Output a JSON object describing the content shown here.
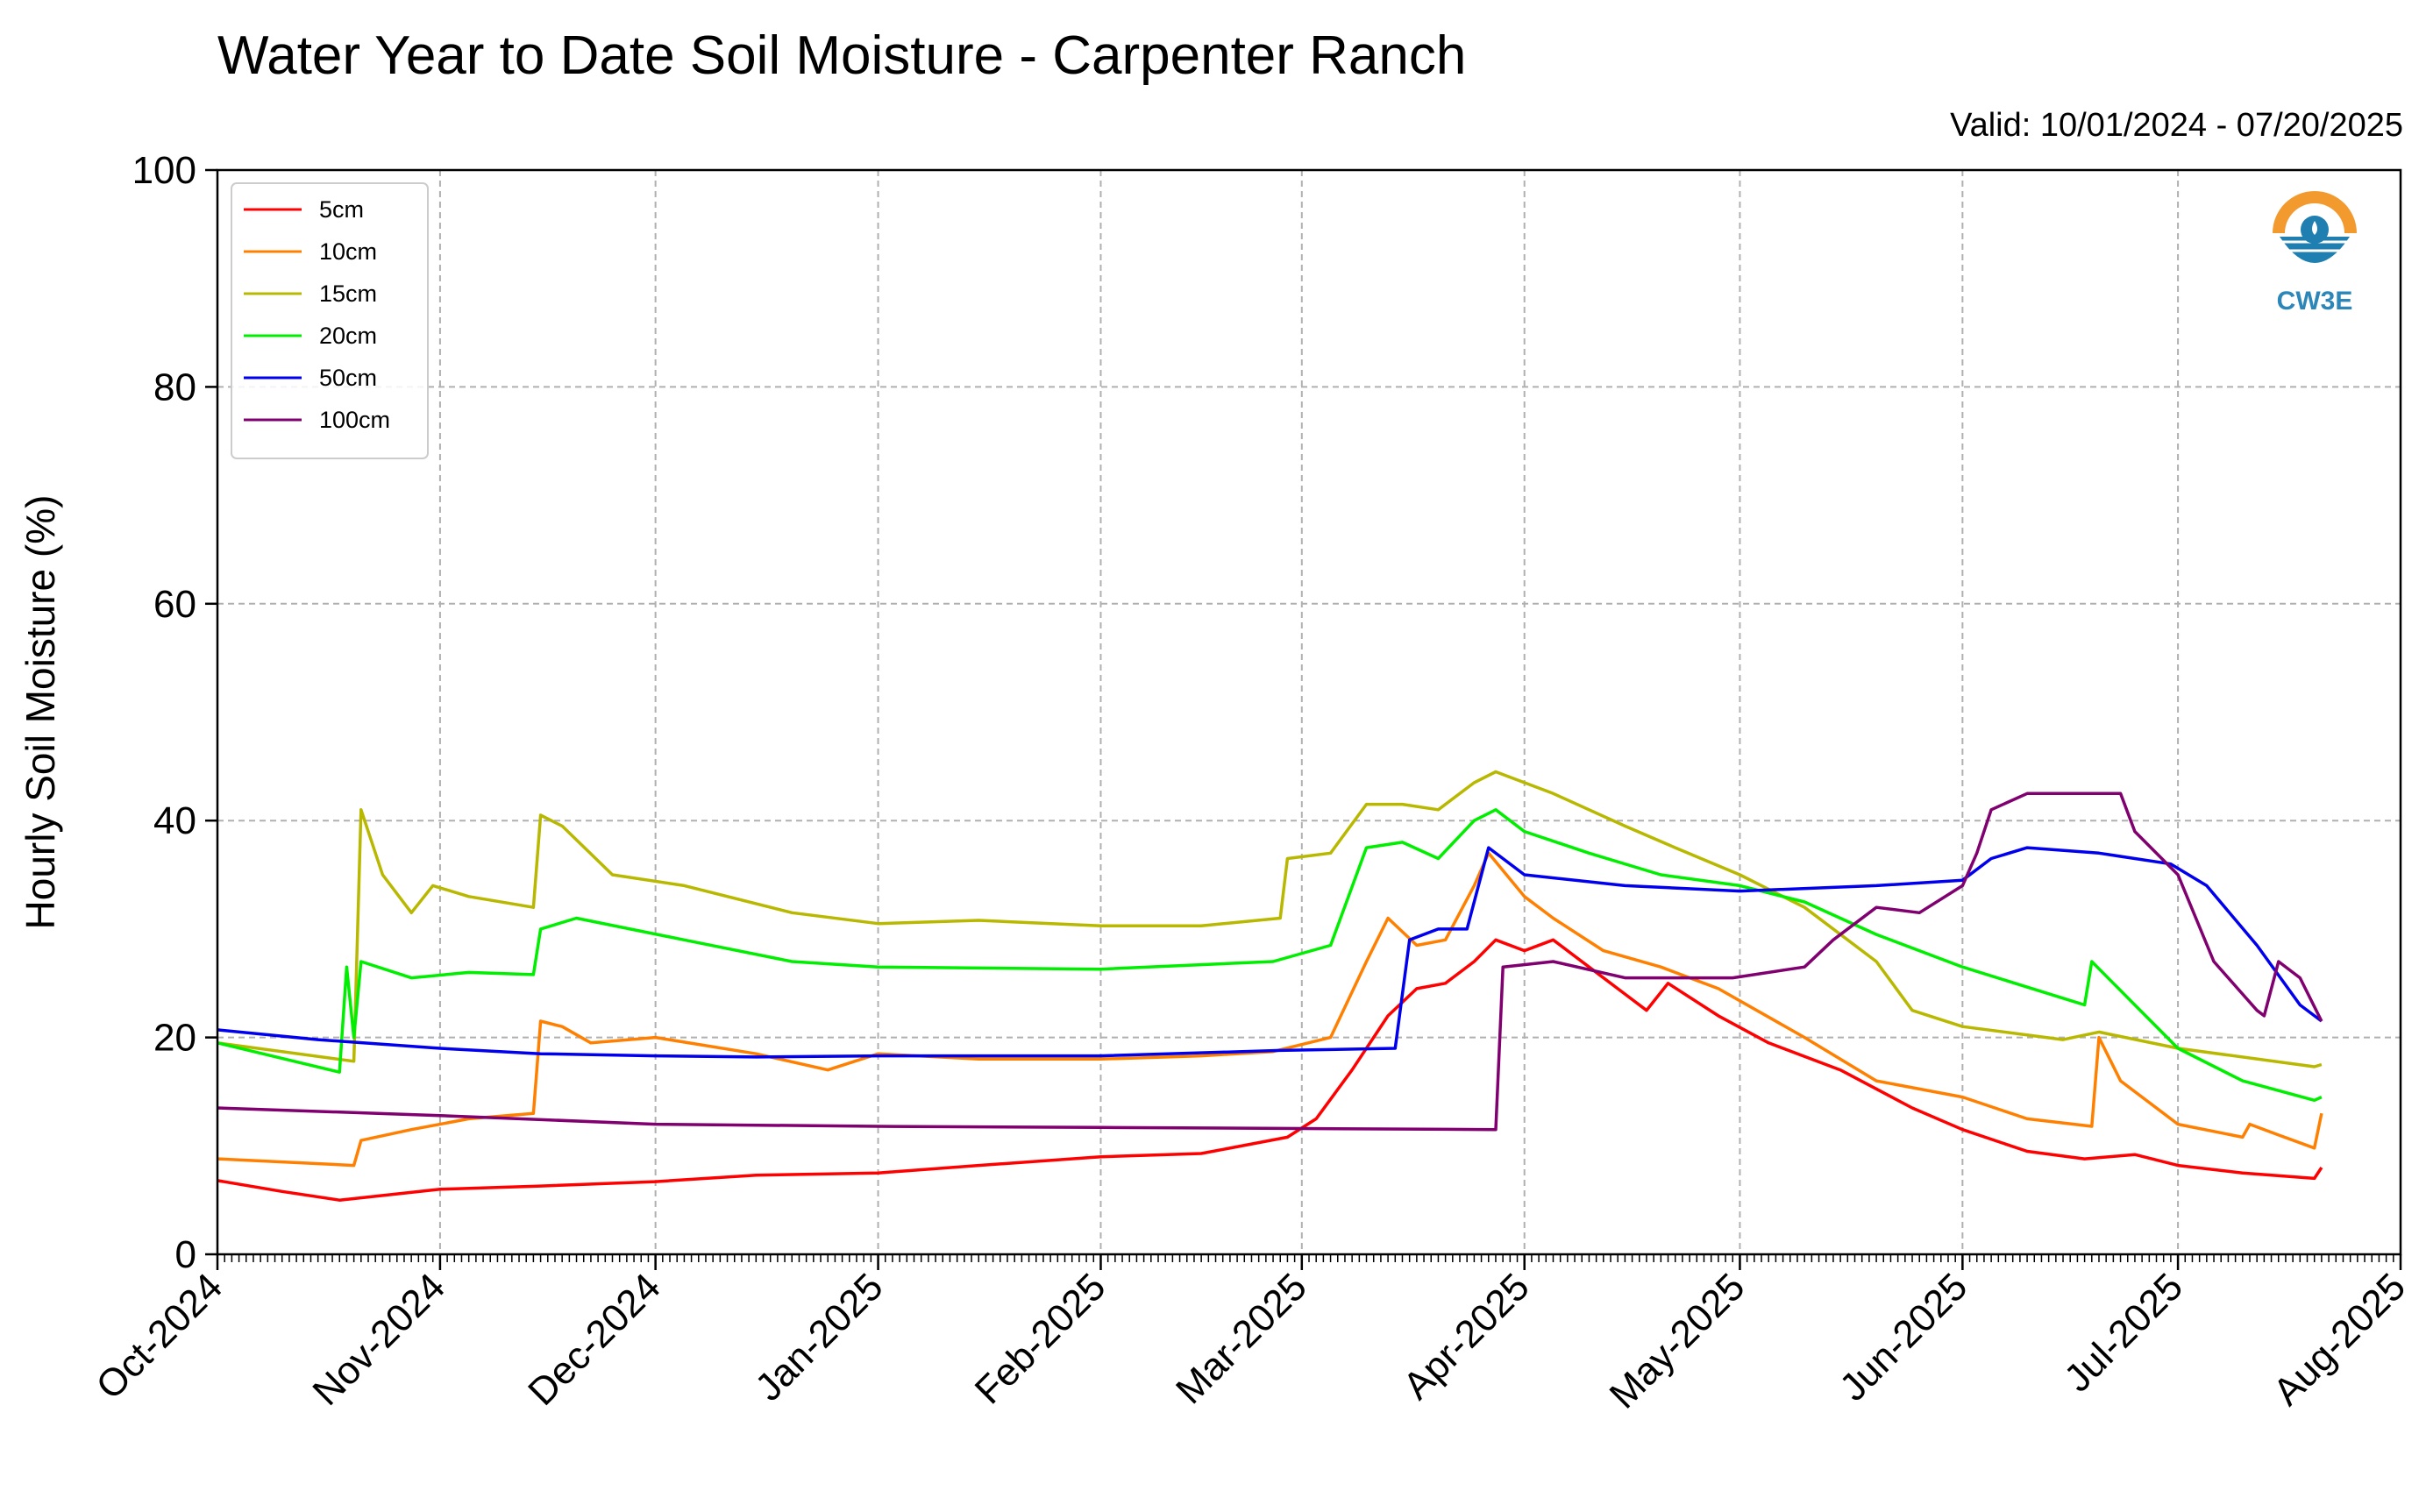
{
  "title": "Water Year to Date Soil Moisture - Carpenter Ranch",
  "valid_text": "Valid: 10/01/2024 - 07/20/2025",
  "logo": {
    "text": "CW3E",
    "icon": "water-drop-logo-icon",
    "sun_color": "#F29A2E",
    "water_color": "#1E7FB0"
  },
  "chart_data": {
    "type": "line",
    "ylabel": "Hourly Soil Moisture (%)",
    "xlabel": "",
    "ylim": [
      0,
      100
    ],
    "xlim": [
      "2024-10-01",
      "2025-08-01"
    ],
    "yticks": [
      0,
      20,
      40,
      60,
      80,
      100
    ],
    "xticks": [
      {
        "date": "2024-10-01",
        "label": "Oct-2024"
      },
      {
        "date": "2024-11-01",
        "label": "Nov-2024"
      },
      {
        "date": "2024-12-01",
        "label": "Dec-2024"
      },
      {
        "date": "2025-01-01",
        "label": "Jan-2025"
      },
      {
        "date": "2025-02-01",
        "label": "Feb-2025"
      },
      {
        "date": "2025-03-01",
        "label": "Mar-2025"
      },
      {
        "date": "2025-04-01",
        "label": "Apr-2025"
      },
      {
        "date": "2025-05-01",
        "label": "May-2025"
      },
      {
        "date": "2025-06-01",
        "label": "Jun-2025"
      },
      {
        "date": "2025-07-01",
        "label": "Jul-2025"
      },
      {
        "date": "2025-08-01",
        "label": "Aug-2025"
      }
    ],
    "grid": true,
    "legend_position": "top-left",
    "series": [
      {
        "name": "5cm",
        "color": "#FF0000",
        "points": [
          [
            "2024-10-01",
            6.8
          ],
          [
            "2024-10-10",
            5.8
          ],
          [
            "2024-10-18",
            5.0
          ],
          [
            "2024-10-25",
            5.5
          ],
          [
            "2024-11-01",
            6.0
          ],
          [
            "2024-11-15",
            6.3
          ],
          [
            "2024-12-01",
            6.7
          ],
          [
            "2024-12-15",
            7.3
          ],
          [
            "2025-01-01",
            7.5
          ],
          [
            "2025-01-15",
            8.2
          ],
          [
            "2025-02-01",
            9.0
          ],
          [
            "2025-02-15",
            9.3
          ],
          [
            "2025-02-27",
            10.8
          ],
          [
            "2025-03-03",
            12.5
          ],
          [
            "2025-03-08",
            17.0
          ],
          [
            "2025-03-13",
            22.0
          ],
          [
            "2025-03-17",
            24.5
          ],
          [
            "2025-03-21",
            25.0
          ],
          [
            "2025-03-25",
            27.0
          ],
          [
            "2025-03-28",
            29.0
          ],
          [
            "2025-04-01",
            28.0
          ],
          [
            "2025-04-05",
            29.0
          ],
          [
            "2025-04-10",
            26.5
          ],
          [
            "2025-04-15",
            24.0
          ],
          [
            "2025-04-18",
            22.5
          ],
          [
            "2025-04-21",
            25.0
          ],
          [
            "2025-04-28",
            22.0
          ],
          [
            "2025-05-05",
            19.5
          ],
          [
            "2025-05-15",
            17.0
          ],
          [
            "2025-05-25",
            13.5
          ],
          [
            "2025-06-01",
            11.5
          ],
          [
            "2025-06-10",
            9.5
          ],
          [
            "2025-06-18",
            8.8
          ],
          [
            "2025-06-25",
            9.2
          ],
          [
            "2025-07-01",
            8.2
          ],
          [
            "2025-07-10",
            7.5
          ],
          [
            "2025-07-20",
            7.0
          ],
          [
            "2025-07-21",
            8.0
          ]
        ]
      },
      {
        "name": "10cm",
        "color": "#FF8000",
        "points": [
          [
            "2024-10-01",
            8.8
          ],
          [
            "2024-10-20",
            8.2
          ],
          [
            "2024-10-21",
            10.5
          ],
          [
            "2024-10-28",
            11.5
          ],
          [
            "2024-11-05",
            12.5
          ],
          [
            "2024-11-14",
            13.0
          ],
          [
            "2024-11-15",
            21.5
          ],
          [
            "2024-11-18",
            21.0
          ],
          [
            "2024-11-22",
            19.5
          ],
          [
            "2024-12-01",
            20.0
          ],
          [
            "2024-12-15",
            18.5
          ],
          [
            "2024-12-25",
            17.0
          ],
          [
            "2025-01-01",
            18.5
          ],
          [
            "2025-01-15",
            18.0
          ],
          [
            "2025-02-01",
            18.0
          ],
          [
            "2025-02-15",
            18.3
          ],
          [
            "2025-02-25",
            18.7
          ],
          [
            "2025-03-05",
            20.0
          ],
          [
            "2025-03-10",
            27.0
          ],
          [
            "2025-03-13",
            31.0
          ],
          [
            "2025-03-17",
            28.5
          ],
          [
            "2025-03-21",
            29.0
          ],
          [
            "2025-03-25",
            34.0
          ],
          [
            "2025-03-27",
            37.0
          ],
          [
            "2025-04-01",
            33.0
          ],
          [
            "2025-04-05",
            31.0
          ],
          [
            "2025-04-12",
            28.0
          ],
          [
            "2025-04-20",
            26.5
          ],
          [
            "2025-04-28",
            24.5
          ],
          [
            "2025-05-10",
            20.0
          ],
          [
            "2025-05-20",
            16.0
          ],
          [
            "2025-06-01",
            14.5
          ],
          [
            "2025-06-10",
            12.5
          ],
          [
            "2025-06-19",
            11.8
          ],
          [
            "2025-06-20",
            20.0
          ],
          [
            "2025-06-23",
            16.0
          ],
          [
            "2025-07-01",
            12.0
          ],
          [
            "2025-07-10",
            10.8
          ],
          [
            "2025-07-11",
            12.0
          ],
          [
            "2025-07-15",
            11.0
          ],
          [
            "2025-07-20",
            9.8
          ],
          [
            "2025-07-21",
            13.0
          ]
        ]
      },
      {
        "name": "15cm",
        "color": "#B8B800",
        "points": [
          [
            "2024-10-01",
            19.5
          ],
          [
            "2024-10-20",
            17.8
          ],
          [
            "2024-10-21",
            41.0
          ],
          [
            "2024-10-24",
            35.0
          ],
          [
            "2024-10-28",
            31.5
          ],
          [
            "2024-10-31",
            34.0
          ],
          [
            "2024-11-05",
            33.0
          ],
          [
            "2024-11-14",
            32.0
          ],
          [
            "2024-11-15",
            40.5
          ],
          [
            "2024-11-18",
            39.5
          ],
          [
            "2024-11-25",
            35.0
          ],
          [
            "2024-12-05",
            34.0
          ],
          [
            "2024-12-20",
            31.5
          ],
          [
            "2025-01-01",
            30.5
          ],
          [
            "2025-01-15",
            30.8
          ],
          [
            "2025-02-01",
            30.3
          ],
          [
            "2025-02-15",
            30.3
          ],
          [
            "2025-02-26",
            31.0
          ],
          [
            "2025-02-27",
            36.5
          ],
          [
            "2025-03-05",
            37.0
          ],
          [
            "2025-03-10",
            41.5
          ],
          [
            "2025-03-15",
            41.5
          ],
          [
            "2025-03-20",
            41.0
          ],
          [
            "2025-03-25",
            43.5
          ],
          [
            "2025-03-28",
            44.5
          ],
          [
            "2025-04-05",
            42.5
          ],
          [
            "2025-04-15",
            39.5
          ],
          [
            "2025-04-22",
            37.5
          ],
          [
            "2025-05-01",
            35.0
          ],
          [
            "2025-05-10",
            32.0
          ],
          [
            "2025-05-20",
            27.0
          ],
          [
            "2025-05-25",
            22.5
          ],
          [
            "2025-06-01",
            21.0
          ],
          [
            "2025-06-15",
            19.8
          ],
          [
            "2025-06-20",
            20.5
          ],
          [
            "2025-07-01",
            19.0
          ],
          [
            "2025-07-20",
            17.3
          ],
          [
            "2025-07-21",
            17.5
          ]
        ]
      },
      {
        "name": "20cm",
        "color": "#00EE00",
        "points": [
          [
            "2024-10-01",
            19.5
          ],
          [
            "2024-10-18",
            16.8
          ],
          [
            "2024-10-19",
            26.5
          ],
          [
            "2024-10-20",
            20.0
          ],
          [
            "2024-10-21",
            27.0
          ],
          [
            "2024-10-28",
            25.5
          ],
          [
            "2024-11-05",
            26.0
          ],
          [
            "2024-11-14",
            25.8
          ],
          [
            "2024-11-15",
            30.0
          ],
          [
            "2024-11-20",
            31.0
          ],
          [
            "2024-12-05",
            29.0
          ],
          [
            "2024-12-20",
            27.0
          ],
          [
            "2025-01-01",
            26.5
          ],
          [
            "2025-02-01",
            26.3
          ],
          [
            "2025-02-25",
            27.0
          ],
          [
            "2025-03-05",
            28.5
          ],
          [
            "2025-03-10",
            37.5
          ],
          [
            "2025-03-15",
            38.0
          ],
          [
            "2025-03-20",
            36.5
          ],
          [
            "2025-03-25",
            40.0
          ],
          [
            "2025-03-28",
            41.0
          ],
          [
            "2025-04-01",
            39.0
          ],
          [
            "2025-04-10",
            37.0
          ],
          [
            "2025-04-20",
            35.0
          ],
          [
            "2025-05-01",
            34.0
          ],
          [
            "2025-05-10",
            32.5
          ],
          [
            "2025-05-20",
            29.5
          ],
          [
            "2025-06-01",
            26.5
          ],
          [
            "2025-06-18",
            23.0
          ],
          [
            "2025-06-19",
            27.0
          ],
          [
            "2025-06-25",
            23.0
          ],
          [
            "2025-07-01",
            19.0
          ],
          [
            "2025-07-10",
            16.0
          ],
          [
            "2025-07-20",
            14.2
          ],
          [
            "2025-07-21",
            14.5
          ]
        ]
      },
      {
        "name": "50cm",
        "color": "#0000EE",
        "points": [
          [
            "2024-10-01",
            20.7
          ],
          [
            "2024-10-15",
            19.8
          ],
          [
            "2024-11-01",
            19.0
          ],
          [
            "2024-11-15",
            18.5
          ],
          [
            "2024-12-01",
            18.3
          ],
          [
            "2024-12-15",
            18.2
          ],
          [
            "2025-01-01",
            18.3
          ],
          [
            "2025-02-01",
            18.3
          ],
          [
            "2025-02-26",
            18.8
          ],
          [
            "2025-03-14",
            19.0
          ],
          [
            "2025-03-16",
            29.0
          ],
          [
            "2025-03-20",
            30.0
          ],
          [
            "2025-03-24",
            30.0
          ],
          [
            "2025-03-26",
            35.0
          ],
          [
            "2025-03-27",
            37.5
          ],
          [
            "2025-04-01",
            35.0
          ],
          [
            "2025-04-15",
            34.0
          ],
          [
            "2025-05-01",
            33.5
          ],
          [
            "2025-05-20",
            34.0
          ],
          [
            "2025-06-01",
            34.5
          ],
          [
            "2025-06-05",
            36.5
          ],
          [
            "2025-06-10",
            37.5
          ],
          [
            "2025-06-20",
            37.0
          ],
          [
            "2025-06-30",
            36.0
          ],
          [
            "2025-07-05",
            34.0
          ],
          [
            "2025-07-12",
            28.5
          ],
          [
            "2025-07-18",
            23.0
          ],
          [
            "2025-07-21",
            21.5
          ]
        ]
      },
      {
        "name": "100cm",
        "color": "#800070",
        "points": [
          [
            "2024-10-01",
            13.5
          ],
          [
            "2024-11-01",
            12.8
          ],
          [
            "2024-12-01",
            12.0
          ],
          [
            "2025-01-01",
            11.8
          ],
          [
            "2025-02-01",
            11.7
          ],
          [
            "2025-03-01",
            11.6
          ],
          [
            "2025-03-28",
            11.5
          ],
          [
            "2025-03-29",
            26.5
          ],
          [
            "2025-04-05",
            27.0
          ],
          [
            "2025-04-15",
            25.5
          ],
          [
            "2025-04-30",
            25.5
          ],
          [
            "2025-05-10",
            26.5
          ],
          [
            "2025-05-14",
            29.0
          ],
          [
            "2025-05-20",
            32.0
          ],
          [
            "2025-05-26",
            31.5
          ],
          [
            "2025-06-01",
            34.0
          ],
          [
            "2025-06-03",
            37.0
          ],
          [
            "2025-06-05",
            41.0
          ],
          [
            "2025-06-10",
            42.5
          ],
          [
            "2025-06-23",
            42.5
          ],
          [
            "2025-06-25",
            39.0
          ],
          [
            "2025-07-01",
            35.0
          ],
          [
            "2025-07-06",
            27.0
          ],
          [
            "2025-07-12",
            22.5
          ],
          [
            "2025-07-13",
            22.0
          ],
          [
            "2025-07-15",
            27.0
          ],
          [
            "2025-07-18",
            25.5
          ],
          [
            "2025-07-21",
            21.5
          ]
        ]
      }
    ]
  }
}
